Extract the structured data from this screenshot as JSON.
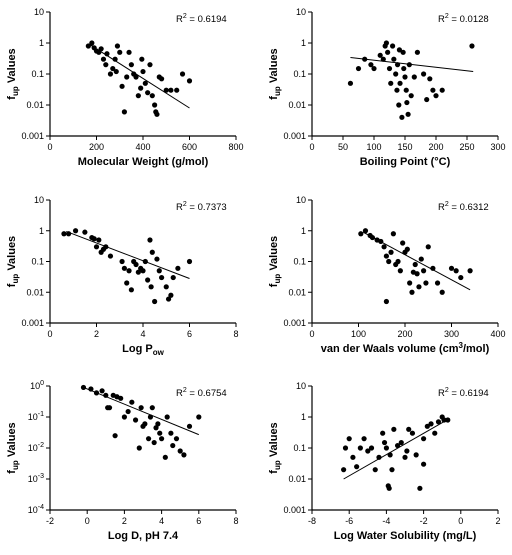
{
  "chart_data": [
    {
      "type": "scatter",
      "panel": "a",
      "xlabel": "Molecular Weight (g/mol)",
      "ylabel": "fup Values",
      "ylabel_main": "f",
      "ylabel_sub": "up",
      "ylabel_rest": " Values",
      "r2": "R",
      "r2_sup": "2",
      "r2_value": " = 0.6194",
      "xlim": [
        0,
        800
      ],
      "ylog": true,
      "ylim": [
        0.001,
        10
      ],
      "xticks": [
        "0",
        "200",
        "400",
        "600",
        "800"
      ],
      "yticks": [
        "0.001",
        "0.01",
        "0.1",
        "1",
        "10"
      ],
      "trendline": {
        "x": [
          170,
          600
        ],
        "y": [
          0.9,
          0.008
        ]
      },
      "points": [
        [
          165,
          0.8
        ],
        [
          180,
          1.0
        ],
        [
          190,
          0.7
        ],
        [
          200,
          0.55
        ],
        [
          210,
          0.5
        ],
        [
          220,
          0.65
        ],
        [
          230,
          0.3
        ],
        [
          240,
          0.2
        ],
        [
          245,
          0.45
        ],
        [
          260,
          0.1
        ],
        [
          270,
          0.15
        ],
        [
          280,
          0.3
        ],
        [
          285,
          0.12
        ],
        [
          290,
          0.8
        ],
        [
          300,
          0.5
        ],
        [
          310,
          0.04
        ],
        [
          320,
          0.006
        ],
        [
          330,
          0.08
        ],
        [
          340,
          0.5
        ],
        [
          350,
          0.2
        ],
        [
          360,
          0.1
        ],
        [
          370,
          0.08
        ],
        [
          380,
          0.02
        ],
        [
          390,
          0.035
        ],
        [
          395,
          0.3
        ],
        [
          400,
          0.12
        ],
        [
          410,
          0.05
        ],
        [
          420,
          0.025
        ],
        [
          430,
          0.2
        ],
        [
          440,
          0.02
        ],
        [
          450,
          0.01
        ],
        [
          455,
          0.006
        ],
        [
          460,
          0.005
        ],
        [
          470,
          0.08
        ],
        [
          480,
          0.07
        ],
        [
          500,
          0.03
        ],
        [
          520,
          0.03
        ],
        [
          545,
          0.03
        ],
        [
          570,
          0.1
        ],
        [
          600,
          0.06
        ]
      ]
    },
    {
      "type": "scatter",
      "panel": "b",
      "xlabel": "Boiling Point (°C)",
      "ylabel": "fup Values",
      "ylabel_main": "f",
      "ylabel_sub": "up",
      "ylabel_rest": " Values",
      "r2": "R",
      "r2_sup": "2",
      "r2_value": " = 0.0128",
      "xlim": [
        0,
        300
      ],
      "ylog": true,
      "ylim": [
        0.001,
        10
      ],
      "xticks": [
        "0",
        "50",
        "100",
        "150",
        "200",
        "250",
        "300"
      ],
      "yticks": [
        "0.001",
        "0.01",
        "0.1",
        "1",
        "10"
      ],
      "trendline": {
        "x": [
          62,
          260
        ],
        "y": [
          0.34,
          0.12
        ]
      },
      "points": [
        [
          62,
          0.05
        ],
        [
          75,
          0.15
        ],
        [
          85,
          0.3
        ],
        [
          95,
          0.2
        ],
        [
          100,
          0.15
        ],
        [
          110,
          0.4
        ],
        [
          115,
          0.3
        ],
        [
          118,
          0.8
        ],
        [
          120,
          1.0
        ],
        [
          122,
          0.5
        ],
        [
          125,
          0.15
        ],
        [
          127,
          0.05
        ],
        [
          130,
          0.8
        ],
        [
          132,
          0.3
        ],
        [
          135,
          0.1
        ],
        [
          137,
          0.03
        ],
        [
          138,
          0.2
        ],
        [
          140,
          0.01
        ],
        [
          141,
          0.6
        ],
        [
          142,
          0.05
        ],
        [
          145,
          0.004
        ],
        [
          147,
          0.5
        ],
        [
          148,
          0.15
        ],
        [
          150,
          0.08
        ],
        [
          152,
          0.03
        ],
        [
          153,
          0.012
        ],
        [
          155,
          0.005
        ],
        [
          157,
          0.2
        ],
        [
          160,
          0.02
        ],
        [
          165,
          0.08
        ],
        [
          170,
          0.5
        ],
        [
          180,
          0.1
        ],
        [
          185,
          0.015
        ],
        [
          190,
          0.07
        ],
        [
          195,
          0.03
        ],
        [
          200,
          0.02
        ],
        [
          210,
          0.03
        ],
        [
          258,
          0.8
        ]
      ]
    },
    {
      "type": "scatter",
      "panel": "c",
      "xlabel": "Log Pow",
      "xlabel_main": "Log P",
      "xlabel_sub": "ow",
      "ylabel": "fup Values",
      "ylabel_main": "f",
      "ylabel_sub": "up",
      "ylabel_rest": " Values",
      "r2": "R",
      "r2_sup": "2",
      "r2_value": " = 0.7373",
      "xlim": [
        0,
        8
      ],
      "ylog": true,
      "ylim": [
        0.001,
        10
      ],
      "xticks": [
        "0",
        "2",
        "4",
        "6",
        "8"
      ],
      "yticks": [
        "0.001",
        "0.01",
        "0.1",
        "1",
        "10"
      ],
      "trendline": {
        "x": [
          0.7,
          6.0
        ],
        "y": [
          0.95,
          0.028
        ]
      },
      "points": [
        [
          0.6,
          0.8
        ],
        [
          0.8,
          0.8
        ],
        [
          1.1,
          1.0
        ],
        [
          1.5,
          0.9
        ],
        [
          1.8,
          0.6
        ],
        [
          1.9,
          0.55
        ],
        [
          2.0,
          0.3
        ],
        [
          2.1,
          0.5
        ],
        [
          2.2,
          0.2
        ],
        [
          2.3,
          0.25
        ],
        [
          2.4,
          0.3
        ],
        [
          2.6,
          0.15
        ],
        [
          3.1,
          0.1
        ],
        [
          3.2,
          0.06
        ],
        [
          3.3,
          0.02
        ],
        [
          3.4,
          0.05
        ],
        [
          3.5,
          0.012
        ],
        [
          3.6,
          0.1
        ],
        [
          3.7,
          0.08
        ],
        [
          3.8,
          0.045
        ],
        [
          3.9,
          0.06
        ],
        [
          4.0,
          0.05
        ],
        [
          4.1,
          0.1
        ],
        [
          4.2,
          0.025
        ],
        [
          4.3,
          0.5
        ],
        [
          4.35,
          0.015
        ],
        [
          4.4,
          0.2
        ],
        [
          4.5,
          0.005
        ],
        [
          4.6,
          0.12
        ],
        [
          4.7,
          0.05
        ],
        [
          4.8,
          0.03
        ],
        [
          5.0,
          0.015
        ],
        [
          5.1,
          0.006
        ],
        [
          5.2,
          0.008
        ],
        [
          5.3,
          0.03
        ],
        [
          5.5,
          0.06
        ],
        [
          6.0,
          0.1
        ]
      ]
    },
    {
      "type": "scatter",
      "panel": "d",
      "xlabel": "van der Waals volume (cm3/mol)",
      "xlabel_main": "van der Waals volume  (cm",
      "xlabel_sup": "3",
      "xlabel_rest": "/mol)",
      "ylabel": "fup Values",
      "ylabel_main": "f",
      "ylabel_sub": "up",
      "ylabel_rest": " Values",
      "r2": "R",
      "r2_sup": "2",
      "r2_value": " = 0.6312",
      "xlim": [
        0,
        400
      ],
      "ylog": true,
      "ylim": [
        0.001,
        10
      ],
      "xticks": [
        "0",
        "100",
        "200",
        "300",
        "400"
      ],
      "yticks": [
        "0.001",
        "0.01",
        "0.1",
        "1",
        "10"
      ],
      "trendline": {
        "x": [
          110,
          340
        ],
        "y": [
          0.9,
          0.012
        ]
      },
      "points": [
        [
          105,
          0.8
        ],
        [
          115,
          1.0
        ],
        [
          125,
          0.7
        ],
        [
          130,
          0.6
        ],
        [
          140,
          0.5
        ],
        [
          148,
          0.45
        ],
        [
          155,
          0.3
        ],
        [
          160,
          0.15
        ],
        [
          165,
          0.1
        ],
        [
          170,
          0.2
        ],
        [
          175,
          0.8
        ],
        [
          180,
          0.08
        ],
        [
          185,
          0.1
        ],
        [
          190,
          0.05
        ],
        [
          195,
          0.4
        ],
        [
          200,
          0.2
        ],
        [
          205,
          0.25
        ],
        [
          210,
          0.02
        ],
        [
          215,
          0.01
        ],
        [
          218,
          0.045
        ],
        [
          222,
          0.08
        ],
        [
          226,
          0.04
        ],
        [
          230,
          0.015
        ],
        [
          235,
          0.12
        ],
        [
          240,
          0.05
        ],
        [
          245,
          0.02
        ],
        [
          250,
          0.3
        ],
        [
          260,
          0.06
        ],
        [
          270,
          0.02
        ],
        [
          280,
          0.01
        ],
        [
          300,
          0.06
        ],
        [
          310,
          0.05
        ],
        [
          320,
          0.03
        ],
        [
          340,
          0.05
        ],
        [
          160,
          0.005
        ]
      ]
    },
    {
      "type": "scatter",
      "panel": "e",
      "xlabel": "Log D, pH 7.4",
      "ylabel": "fup Values",
      "ylabel_main": "f",
      "ylabel_sub": "up",
      "ylabel_rest": " Values",
      "r2": "R",
      "r2_sup": "2",
      "r2_value": " = 0.6754",
      "xlim": [
        -2,
        8
      ],
      "ylog": true,
      "ylim": [
        0.0001,
        1
      ],
      "ytick_sci": true,
      "xticks": [
        "-2",
        "0",
        "2",
        "4",
        "6",
        "8"
      ],
      "yticks": [
        "10",
        "10",
        "10",
        "10",
        "10"
      ],
      "ytick_exponents": [
        "-4",
        "-3",
        "-2",
        "-1",
        "0"
      ],
      "trendline": {
        "x": [
          -0.2,
          6.0
        ],
        "y": [
          0.9,
          0.027
        ]
      },
      "points": [
        [
          -0.2,
          0.9
        ],
        [
          0.2,
          0.8
        ],
        [
          0.5,
          0.6
        ],
        [
          0.8,
          0.7
        ],
        [
          1.0,
          0.5
        ],
        [
          1.1,
          0.2
        ],
        [
          1.2,
          0.2
        ],
        [
          1.4,
          0.5
        ],
        [
          1.5,
          0.025
        ],
        [
          1.6,
          0.45
        ],
        [
          1.8,
          0.4
        ],
        [
          2.0,
          0.1
        ],
        [
          2.2,
          0.15
        ],
        [
          2.4,
          0.3
        ],
        [
          2.6,
          0.08
        ],
        [
          2.8,
          0.01
        ],
        [
          2.9,
          0.2
        ],
        [
          3.0,
          0.05
        ],
        [
          3.1,
          0.06
        ],
        [
          3.3,
          0.02
        ],
        [
          3.4,
          0.1
        ],
        [
          3.5,
          0.2
        ],
        [
          3.6,
          0.015
        ],
        [
          3.7,
          0.045
        ],
        [
          3.8,
          0.06
        ],
        [
          3.9,
          0.03
        ],
        [
          4.0,
          0.02
        ],
        [
          4.2,
          0.005
        ],
        [
          4.3,
          0.1
        ],
        [
          4.5,
          0.03
        ],
        [
          4.6,
          0.012
        ],
        [
          4.8,
          0.02
        ],
        [
          5.0,
          0.008
        ],
        [
          5.2,
          0.006
        ],
        [
          5.5,
          0.05
        ],
        [
          6.0,
          0.1
        ]
      ]
    },
    {
      "type": "scatter",
      "panel": "f",
      "xlabel": "Log Water Solubility (mg/L)",
      "ylabel": "fup Values",
      "ylabel_main": "f",
      "ylabel_sub": "up",
      "ylabel_rest": " Values",
      "r2": "R",
      "r2_sup": "2",
      "r2_value": " = 0.6194",
      "xlim": [
        -8,
        2
      ],
      "ylog": true,
      "ylim": [
        0.001,
        10
      ],
      "xticks": [
        "-8",
        "-6",
        "-4",
        "-2",
        "0",
        "2"
      ],
      "yticks": [
        "0.001",
        "0.01",
        "0.1",
        "1",
        "10"
      ],
      "trendline": {
        "x": [
          -6.3,
          -0.6
        ],
        "y": [
          0.01,
          0.9
        ]
      },
      "points": [
        [
          -6.3,
          0.02
        ],
        [
          -6.2,
          0.1
        ],
        [
          -6.0,
          0.2
        ],
        [
          -5.8,
          0.05
        ],
        [
          -5.6,
          0.025
        ],
        [
          -5.4,
          0.1
        ],
        [
          -5.2,
          0.2
        ],
        [
          -5.0,
          0.08
        ],
        [
          -4.8,
          0.1
        ],
        [
          -4.6,
          0.02
        ],
        [
          -4.4,
          0.05
        ],
        [
          -4.2,
          0.3
        ],
        [
          -4.1,
          0.15
        ],
        [
          -4.0,
          0.1
        ],
        [
          -3.9,
          0.006
        ],
        [
          -3.85,
          0.005
        ],
        [
          -3.8,
          0.06
        ],
        [
          -3.7,
          0.02
        ],
        [
          -3.6,
          0.4
        ],
        [
          -3.4,
          0.12
        ],
        [
          -3.2,
          0.15
        ],
        [
          -3.0,
          0.05
        ],
        [
          -2.9,
          0.08
        ],
        [
          -2.8,
          0.4
        ],
        [
          -2.6,
          0.3
        ],
        [
          -2.4,
          0.06
        ],
        [
          -2.2,
          0.005
        ],
        [
          -2.0,
          0.2
        ],
        [
          -1.8,
          0.5
        ],
        [
          -1.6,
          0.6
        ],
        [
          -1.4,
          0.3
        ],
        [
          -1.2,
          0.7
        ],
        [
          -1.0,
          1.0
        ],
        [
          -0.9,
          0.8
        ],
        [
          -0.7,
          0.8
        ],
        [
          -2.0,
          0.03
        ]
      ]
    }
  ]
}
